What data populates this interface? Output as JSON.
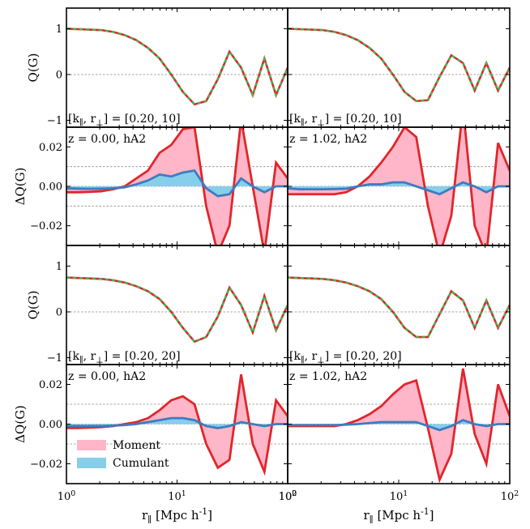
{
  "chart_data": {
    "type": "line",
    "layout": "4x2 panel grid, shared log x-axis",
    "x_axis": {
      "scale": "log",
      "lim": [
        1,
        100
      ],
      "ticks": [
        1,
        10,
        100
      ],
      "tick_labels_left": [
        "10^0",
        "10^1",
        "10^2"
      ],
      "tick_labels_right": [
        "10^0",
        "10^1",
        "10^2"
      ],
      "label": "r_∥ [Mpc h^{-1}]"
    },
    "x": [
      1,
      1.27,
      1.62,
      2.07,
      2.64,
      3.36,
      4.28,
      5.46,
      6.95,
      8.86,
      11.29,
      14.38,
      18.33,
      23.36,
      29.76,
      37.93,
      48.33,
      61.58,
      78.48,
      100
    ],
    "q_axis": {
      "label": "Q(G)",
      "ylim": [
        -1.15,
        1.45
      ],
      "ticks": [
        -1,
        0,
        1
      ],
      "tick_labels": [
        "−1",
        "0",
        "1"
      ],
      "reference_line": 0
    },
    "dq_axis": {
      "label": "ΔQ(G)",
      "ylim": [
        -0.03,
        0.03
      ],
      "ticks": [
        -0.02,
        0,
        0.02
      ],
      "tick_labels": [
        "−0.02",
        "0.00",
        "0.02"
      ],
      "reference_lines": [
        -0.01,
        0,
        0.01
      ]
    },
    "legend": {
      "position": "lower-left of bottom-left panel",
      "entries": [
        {
          "name": "Moment",
          "color": "#ffb6c8"
        },
        {
          "name": "Cumulant",
          "color": "#87ceeb"
        }
      ]
    },
    "colors": {
      "moment_line": "#e0262b",
      "moment_fill": "#ffb6c8",
      "cumulant_line": "#3d7cc0",
      "cumulant_fill": "#87ceeb",
      "q_red": "#e0262b",
      "q_green": "#4caf50"
    },
    "panels": [
      {
        "kind": "Q",
        "label": "[k_∥, r_⊥] = [0.20,  10]",
        "series": [
          {
            "name": "Moment",
            "values": [
              1.0,
              0.99,
              0.98,
              0.97,
              0.93,
              0.86,
              0.75,
              0.58,
              0.35,
              0.0,
              -0.38,
              -0.65,
              -0.58,
              -0.1,
              0.5,
              0.15,
              -0.45,
              0.35,
              -0.45,
              0.15
            ]
          },
          {
            "name": "Cumulant",
            "values": [
              1.0,
              0.99,
              0.98,
              0.97,
              0.93,
              0.86,
              0.75,
              0.58,
              0.35,
              0.0,
              -0.38,
              -0.65,
              -0.58,
              -0.1,
              0.5,
              0.15,
              -0.45,
              0.35,
              -0.45,
              0.15
            ]
          }
        ]
      },
      {
        "kind": "Q",
        "label": "[k_∥, r_⊥] = [0.20,  10]",
        "series": [
          {
            "name": "Moment",
            "values": [
              1.0,
              0.99,
              0.98,
              0.97,
              0.93,
              0.86,
              0.75,
              0.58,
              0.35,
              0.0,
              -0.38,
              -0.58,
              -0.56,
              -0.05,
              0.42,
              0.25,
              -0.35,
              0.25,
              -0.35,
              0.15
            ]
          },
          {
            "name": "Cumulant",
            "values": [
              1.0,
              0.99,
              0.98,
              0.97,
              0.93,
              0.86,
              0.75,
              0.58,
              0.35,
              0.0,
              -0.38,
              -0.58,
              -0.56,
              -0.05,
              0.42,
              0.25,
              -0.35,
              0.25,
              -0.35,
              0.15
            ]
          }
        ]
      },
      {
        "kind": "dQ",
        "label": "z = 0.00, hA2",
        "series": [
          {
            "name": "Moment",
            "values": [
              -0.003,
              -0.003,
              -0.0028,
              -0.0025,
              -0.0015,
              0.0,
              0.004,
              0.008,
              0.017,
              0.021,
              0.029,
              0.03,
              -0.01,
              -0.034,
              -0.02,
              0.034,
              0.0,
              -0.034,
              0.012,
              0.004
            ]
          },
          {
            "name": "Cumulant",
            "values": [
              -0.001,
              -0.0012,
              -0.0013,
              -0.0012,
              -0.001,
              -0.0005,
              0.001,
              0.003,
              0.006,
              0.005,
              0.007,
              0.008,
              -0.001,
              -0.005,
              -0.004,
              0.004,
              0.0,
              -0.003,
              0.0,
              0.0
            ]
          }
        ]
      },
      {
        "kind": "dQ",
        "label": "z = 1.02, hA2",
        "series": [
          {
            "name": "Moment",
            "values": [
              -0.004,
              -0.004,
              -0.004,
              -0.004,
              -0.004,
              -0.003,
              0.0,
              0.005,
              0.012,
              0.02,
              0.03,
              0.025,
              -0.01,
              -0.035,
              -0.015,
              0.04,
              -0.02,
              -0.035,
              0.022,
              0.008
            ]
          },
          {
            "name": "Cumulant",
            "values": [
              -0.001,
              -0.0015,
              -0.0015,
              -0.0015,
              -0.0014,
              -0.0012,
              0.0,
              0.001,
              0.001,
              0.002,
              0.002,
              0.0,
              -0.002,
              -0.004,
              -0.001,
              0.002,
              0.0,
              -0.003,
              0.0,
              0.0
            ]
          }
        ]
      },
      {
        "kind": "Q",
        "label": "[k_∥, r_⊥] = [0.20,  20]",
        "series": [
          {
            "name": "Moment",
            "values": [
              0.75,
              0.74,
              0.73,
              0.72,
              0.69,
              0.64,
              0.56,
              0.45,
              0.28,
              0.0,
              -0.35,
              -0.65,
              -0.55,
              -0.1,
              0.53,
              0.15,
              -0.45,
              0.35,
              -0.4,
              0.15
            ]
          },
          {
            "name": "Cumulant",
            "values": [
              0.75,
              0.74,
              0.73,
              0.72,
              0.69,
              0.64,
              0.56,
              0.45,
              0.28,
              0.0,
              -0.35,
              -0.65,
              -0.55,
              -0.1,
              0.53,
              0.15,
              -0.45,
              0.35,
              -0.4,
              0.15
            ]
          }
        ]
      },
      {
        "kind": "Q",
        "label": "[k_∥, r_⊥] = [0.20,  20]",
        "series": [
          {
            "name": "Moment",
            "values": [
              0.75,
              0.74,
              0.73,
              0.72,
              0.69,
              0.64,
              0.56,
              0.45,
              0.28,
              0.0,
              -0.35,
              -0.55,
              -0.55,
              -0.05,
              0.45,
              0.25,
              -0.35,
              0.25,
              -0.35,
              0.15
            ]
          },
          {
            "name": "Cumulant",
            "values": [
              0.75,
              0.74,
              0.73,
              0.72,
              0.69,
              0.64,
              0.56,
              0.45,
              0.28,
              0.0,
              -0.35,
              -0.55,
              -0.55,
              -0.05,
              0.45,
              0.25,
              -0.35,
              0.25,
              -0.35,
              0.15
            ]
          }
        ]
      },
      {
        "kind": "dQ",
        "label": "z = 0.00, hA2",
        "series": [
          {
            "name": "Moment",
            "values": [
              -0.002,
              -0.002,
              -0.0018,
              -0.0015,
              -0.001,
              0.0,
              0.001,
              0.003,
              0.007,
              0.012,
              0.014,
              0.01,
              -0.01,
              -0.022,
              -0.018,
              0.025,
              -0.01,
              -0.024,
              0.012,
              0.004
            ]
          },
          {
            "name": "Cumulant",
            "values": [
              -0.001,
              -0.001,
              -0.001,
              -0.001,
              -0.0008,
              -0.0005,
              0.0,
              0.001,
              0.002,
              0.003,
              0.003,
              0.002,
              -0.001,
              -0.002,
              -0.001,
              0.001,
              0.0,
              -0.001,
              0.0,
              0.0
            ]
          }
        ]
      },
      {
        "kind": "dQ",
        "label": "z = 1.02, hA2",
        "series": [
          {
            "name": "Moment",
            "values": [
              -0.001,
              -0.001,
              -0.001,
              -0.001,
              -0.001,
              0.0,
              0.002,
              0.005,
              0.009,
              0.015,
              0.02,
              0.022,
              -0.002,
              -0.028,
              -0.015,
              0.028,
              -0.005,
              -0.02,
              0.02,
              0.004
            ]
          },
          {
            "name": "Cumulant",
            "values": [
              -0.0005,
              -0.0005,
              -0.0005,
              -0.0005,
              -0.0005,
              -0.0003,
              0.0,
              0.0005,
              0.001,
              0.001,
              0.001,
              0.001,
              -0.001,
              -0.003,
              -0.001,
              0.002,
              0.0,
              -0.001,
              0.0,
              0.0
            ]
          }
        ]
      }
    ]
  }
}
